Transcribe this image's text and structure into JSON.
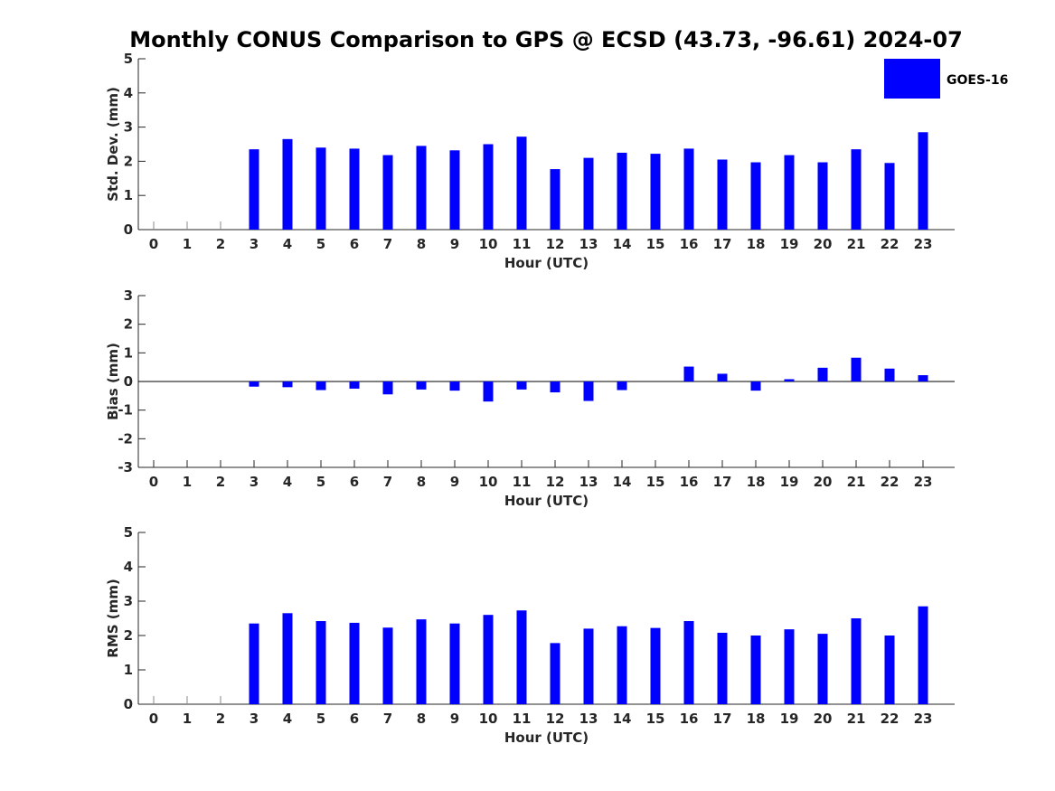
{
  "chart_data": {
    "title": "Monthly CONUS Comparison to GPS @ ECSD (43.73, -96.61) 2024-07",
    "legend": {
      "label": "GOES-16",
      "color": "#0000ff",
      "placement": "top-right"
    },
    "panels": [
      {
        "type": "bar",
        "ylabel": "Std. Dev. (mm)",
        "xlabel": "Hour (UTC)",
        "ylim": [
          0,
          5
        ],
        "yticks": [
          0,
          1,
          2,
          3,
          4,
          5
        ],
        "x": [
          0,
          1,
          2,
          3,
          4,
          5,
          6,
          7,
          8,
          9,
          10,
          11,
          12,
          13,
          14,
          15,
          16,
          17,
          18,
          19,
          20,
          21,
          22,
          23
        ],
        "values": [
          null,
          null,
          null,
          2.35,
          2.65,
          2.4,
          2.37,
          2.18,
          2.45,
          2.32,
          2.5,
          2.72,
          1.77,
          2.1,
          2.25,
          2.22,
          2.37,
          2.05,
          1.97,
          2.18,
          1.97,
          2.35,
          1.95,
          2.85
        ],
        "zero_markers": [
          0,
          1,
          2
        ],
        "baseline": 0
      },
      {
        "type": "bar",
        "ylabel": "Bias (mm)",
        "xlabel": "Hour (UTC)",
        "ylim": [
          -3,
          3
        ],
        "yticks": [
          -3,
          -2,
          -1,
          0,
          1,
          2,
          3
        ],
        "x": [
          0,
          1,
          2,
          3,
          4,
          5,
          6,
          7,
          8,
          9,
          10,
          11,
          12,
          13,
          14,
          15,
          16,
          17,
          18,
          19,
          20,
          21,
          22,
          23
        ],
        "values": [
          null,
          null,
          null,
          -0.18,
          -0.2,
          -0.3,
          -0.25,
          -0.45,
          -0.28,
          -0.32,
          -0.7,
          -0.28,
          -0.38,
          -0.68,
          -0.3,
          0.0,
          0.52,
          0.27,
          -0.32,
          0.08,
          0.48,
          0.83,
          0.45,
          0.22
        ],
        "zero_markers": [],
        "baseline": 0,
        "zero_line": true
      },
      {
        "type": "bar",
        "ylabel": "RMS (mm)",
        "xlabel": "Hour (UTC)",
        "ylim": [
          0,
          5
        ],
        "yticks": [
          0,
          1,
          2,
          3,
          4,
          5
        ],
        "x": [
          0,
          1,
          2,
          3,
          4,
          5,
          6,
          7,
          8,
          9,
          10,
          11,
          12,
          13,
          14,
          15,
          16,
          17,
          18,
          19,
          20,
          21,
          22,
          23
        ],
        "values": [
          null,
          null,
          null,
          2.35,
          2.65,
          2.42,
          2.37,
          2.23,
          2.47,
          2.35,
          2.6,
          2.73,
          1.78,
          2.2,
          2.27,
          2.22,
          2.42,
          2.08,
          2.0,
          2.18,
          2.05,
          2.5,
          2.0,
          2.85
        ],
        "zero_markers": [
          0,
          1,
          2
        ],
        "baseline": 0
      }
    ]
  }
}
